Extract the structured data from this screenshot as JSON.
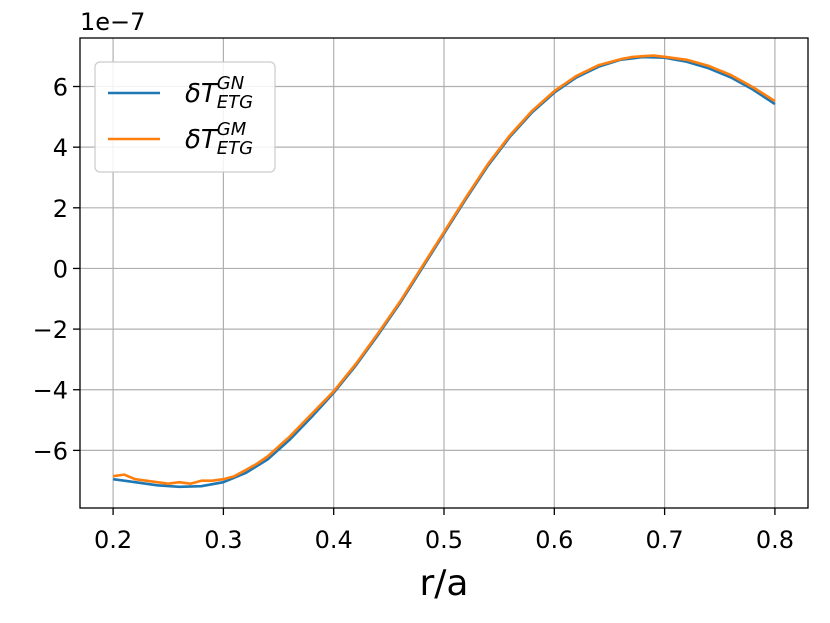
{
  "chart_data": {
    "type": "line",
    "xlabel": "r/a",
    "ylabel": "",
    "y_offset_text": "1e−7",
    "xlim": [
      0.17,
      0.83
    ],
    "ylim": [
      -7.9,
      7.6
    ],
    "xticks": [
      0.2,
      0.3,
      0.4,
      0.5,
      0.6,
      0.7,
      0.8
    ],
    "xtick_labels": [
      "0.2",
      "0.3",
      "0.4",
      "0.5",
      "0.6",
      "0.7",
      "0.8"
    ],
    "yticks": [
      -6,
      -4,
      -2,
      0,
      2,
      4,
      6
    ],
    "ytick_labels": [
      "−6",
      "−4",
      "−2",
      "0",
      "2",
      "4",
      "6"
    ],
    "grid": true,
    "legend_position": "top-left",
    "series": [
      {
        "name_base": "δT",
        "name_sub": "ETG",
        "name_sup": "GN",
        "color": "#1f77b4",
        "x": [
          0.2,
          0.22,
          0.24,
          0.26,
          0.28,
          0.3,
          0.32,
          0.34,
          0.36,
          0.38,
          0.4,
          0.42,
          0.44,
          0.46,
          0.48,
          0.5,
          0.52,
          0.54,
          0.56,
          0.58,
          0.6,
          0.62,
          0.64,
          0.66,
          0.68,
          0.7,
          0.72,
          0.74,
          0.76,
          0.78,
          0.8
        ],
        "y": [
          -6.95,
          -7.05,
          -7.15,
          -7.2,
          -7.18,
          -7.05,
          -6.75,
          -6.3,
          -5.65,
          -4.9,
          -4.1,
          -3.2,
          -2.2,
          -1.15,
          0.0,
          1.15,
          2.3,
          3.4,
          4.35,
          5.15,
          5.8,
          6.3,
          6.65,
          6.88,
          6.97,
          6.95,
          6.82,
          6.6,
          6.3,
          5.9,
          5.42
        ]
      },
      {
        "name_base": "δT",
        "name_sub": "ETG",
        "name_sup": "GM",
        "color": "#ff7f0e",
        "x": [
          0.2,
          0.21,
          0.22,
          0.23,
          0.24,
          0.25,
          0.26,
          0.27,
          0.28,
          0.29,
          0.3,
          0.31,
          0.32,
          0.33,
          0.34,
          0.36,
          0.38,
          0.4,
          0.42,
          0.44,
          0.46,
          0.48,
          0.5,
          0.52,
          0.54,
          0.56,
          0.58,
          0.6,
          0.62,
          0.64,
          0.66,
          0.67,
          0.68,
          0.69,
          0.7,
          0.72,
          0.74,
          0.76,
          0.78,
          0.8
        ],
        "y": [
          -6.85,
          -6.8,
          -6.95,
          -7.0,
          -7.05,
          -7.1,
          -7.05,
          -7.1,
          -7.0,
          -7.0,
          -6.95,
          -6.85,
          -6.65,
          -6.45,
          -6.2,
          -5.55,
          -4.8,
          -4.05,
          -3.15,
          -2.15,
          -1.1,
          0.05,
          1.2,
          2.35,
          3.45,
          4.4,
          5.2,
          5.85,
          6.35,
          6.7,
          6.9,
          6.97,
          7.0,
          7.02,
          6.98,
          6.88,
          6.68,
          6.38,
          5.98,
          5.52
        ]
      }
    ]
  }
}
